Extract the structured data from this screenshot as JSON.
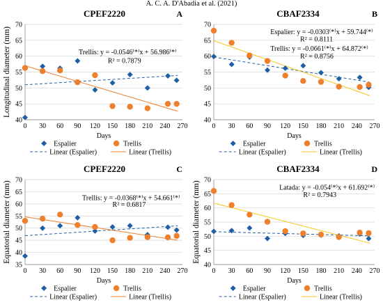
{
  "header": {
    "text": "A. C. A. D'Abadia et al. (2021)"
  },
  "colors": {
    "espalier": "#1f5fa6",
    "trellis": "#ee7f2d",
    "trellis_line_B": "#f5c518",
    "axis": "#888888",
    "grid": "#d4d4d4"
  },
  "chart_data": [
    {
      "type": "scatter",
      "panel": "A",
      "title": "CPEF2220",
      "xlabel": "Days",
      "ylabel": "Longitudinal diameter (mm)",
      "xlim": [
        0,
        270
      ],
      "ylim": [
        40,
        70
      ],
      "xticks": [
        "0",
        "30",
        "60",
        "90",
        "120",
        "150",
        "180",
        "210",
        "240",
        "270"
      ],
      "yticks": [
        "40",
        "45",
        "50",
        "55",
        "60",
        "65",
        "70"
      ],
      "grid": true,
      "legend_position": "bottom",
      "series": [
        {
          "name": "Espalier",
          "marker": "diamond",
          "x": [
            0,
            30,
            60,
            90,
            120,
            150,
            180,
            210,
            245,
            260
          ],
          "y": [
            40.7,
            56.8,
            56.2,
            58.5,
            49.4,
            51.6,
            54.2,
            50.0,
            53.8,
            52.4
          ]
        },
        {
          "name": "Trellis",
          "marker": "circle",
          "x": [
            0,
            30,
            60,
            90,
            120,
            150,
            180,
            210,
            245,
            260
          ],
          "y": [
            56.3,
            55.3,
            55.5,
            51.8,
            54.0,
            44.3,
            44.1,
            43.6,
            45.0,
            45.0
          ]
        }
      ],
      "trendlines": [
        {
          "name": "Linear (Espalier)",
          "style": "dashed",
          "slope": 0.0112,
          "intercept": 51.0
        },
        {
          "name": "Linear (Trellis)",
          "style": "solid",
          "slope": -0.0546,
          "intercept": 56.986
        }
      ],
      "annotations": [
        {
          "text": "Trellis:  y = -0.0546⁽*⁾x + 56.986⁽*⁾",
          "x": 92,
          "y": 60.6
        },
        {
          "text": "R² = 0.7879",
          "x": 142,
          "y": 57.9
        }
      ]
    },
    {
      "type": "scatter",
      "panel": "B",
      "title": "CBAF2334",
      "xlabel": "Days",
      "ylabel": "",
      "xlim": [
        0,
        270
      ],
      "ylim": [
        40,
        70
      ],
      "xticks": [
        "0",
        "30",
        "60",
        "90",
        "120",
        "150",
        "180",
        "210",
        "240",
        "270"
      ],
      "yticks": [
        "40",
        "45",
        "50",
        "55",
        "60",
        "65",
        "70"
      ],
      "grid": true,
      "legend_position": "bottom",
      "series": [
        {
          "name": "Espalier",
          "marker": "diamond",
          "x": [
            0,
            30,
            60,
            90,
            120,
            150,
            180,
            210,
            245,
            260
          ],
          "y": [
            59.9,
            57.4,
            59.7,
            55.6,
            56.2,
            57.0,
            54.8,
            52.9,
            53.3,
            50.2
          ]
        },
        {
          "name": "Trellis",
          "marker": "circle",
          "x": [
            0,
            30,
            60,
            90,
            120,
            150,
            180,
            210,
            245,
            260
          ],
          "y": [
            68.0,
            64.2,
            60.2,
            58.5,
            53.9,
            52.2,
            51.9,
            50.4,
            50.3,
            51.0
          ]
        }
      ],
      "trendlines": [
        {
          "name": "Linear (Espalier)",
          "style": "dashed",
          "slope": -0.0303,
          "intercept": 59.744
        },
        {
          "name": "Linear (Trellis)",
          "style": "solid",
          "slope": -0.0661,
          "intercept": 64.872
        }
      ],
      "annotations": [
        {
          "text": "Espalier: y = -0.0303⁽*⁾x + 59.744⁽*⁾",
          "x": 95,
          "y": 66.9
        },
        {
          "text": "R² = 0.8111",
          "x": 145,
          "y": 64.6
        },
        {
          "text": "Trellis:  y = -0.0661⁽*⁾x + 64.872⁽*⁾",
          "x": 95,
          "y": 61.7
        },
        {
          "text": "R² = 0.8756",
          "x": 145,
          "y": 59.3
        }
      ]
    },
    {
      "type": "scatter",
      "panel": "C",
      "title": "CPEF2220",
      "xlabel": "Days",
      "ylabel": "Equatorial diameter (mm)",
      "xlim": [
        0,
        270
      ],
      "ylim": [
        35,
        70
      ],
      "xticks": [
        "0",
        "30",
        "60",
        "90",
        "120",
        "150",
        "180",
        "210",
        "240",
        "270"
      ],
      "yticks": [
        "35",
        "40",
        "45",
        "50",
        "55",
        "60",
        "65",
        "70"
      ],
      "grid": true,
      "legend_position": "bottom",
      "series": [
        {
          "name": "Espalier",
          "marker": "diamond",
          "x": [
            0,
            30,
            60,
            90,
            120,
            150,
            180,
            210,
            245,
            260
          ],
          "y": [
            38.5,
            50.0,
            51.0,
            54.3,
            48.8,
            50.5,
            51.0,
            47.3,
            50.4,
            49.2
          ]
        },
        {
          "name": "Trellis",
          "marker": "circle",
          "x": [
            0,
            30,
            60,
            90,
            120,
            150,
            180,
            210,
            245,
            260
          ],
          "y": [
            53.0,
            53.9,
            55.6,
            51.3,
            50.5,
            45.0,
            46.0,
            46.3,
            46.2,
            46.8
          ]
        }
      ],
      "trendlines": [
        {
          "name": "Linear (Espalier)",
          "style": "dashed",
          "slope": 0.0155,
          "intercept": 46.9
        },
        {
          "name": "Linear (Trellis)",
          "style": "solid",
          "slope": -0.0368,
          "intercept": 54.661
        }
      ],
      "annotations": [
        {
          "text": "Trellis:  y = -0.0368⁽*⁾x + 54.661⁽*⁾",
          "x": 98,
          "y": 61.5
        },
        {
          "text": "R² = 0.6817",
          "x": 150,
          "y": 58.8
        }
      ]
    },
    {
      "type": "scatter",
      "panel": "D",
      "title": "CBAF2334",
      "xlabel": "Days",
      "ylabel": "Equatorial diameter (mm)",
      "xlim": [
        0,
        270
      ],
      "ylim": [
        40,
        70
      ],
      "xticks": [
        "0",
        "30",
        "60",
        "90",
        "120",
        "150",
        "180",
        "210",
        "240",
        "270"
      ],
      "yticks": [
        "40",
        "45",
        "50",
        "55",
        "60",
        "65",
        "70"
      ],
      "grid": true,
      "legend_position": "bottom",
      "series": [
        {
          "name": "Espalier",
          "marker": "diamond",
          "x": [
            0,
            30,
            60,
            90,
            120,
            150,
            180,
            210,
            245,
            260
          ],
          "y": [
            51.7,
            52.0,
            52.9,
            49.2,
            51.0,
            50.3,
            50.4,
            50.1,
            50.8,
            49.2
          ]
        },
        {
          "name": "Trellis",
          "marker": "circle",
          "x": [
            0,
            30,
            60,
            90,
            120,
            150,
            180,
            210,
            245,
            260
          ],
          "y": [
            66.0,
            61.0,
            57.6,
            55.1,
            51.8,
            51.0,
            50.6,
            49.7,
            51.3,
            51.1
          ]
        }
      ],
      "trendlines": [
        {
          "name": "Linear (Espalier)",
          "style": "dashed",
          "slope": -0.0056,
          "intercept": 51.6
        },
        {
          "name": "Linear (Trellis)",
          "style": "solid",
          "slope": -0.054,
          "intercept": 61.692
        }
      ],
      "annotations": [
        {
          "text": "Latada: y = -0.054⁽*⁾x + 61.692⁽*⁾",
          "x": 110,
          "y": 66.4
        },
        {
          "text": "R² = 0.7943",
          "x": 150,
          "y": 63.8
        }
      ]
    }
  ]
}
